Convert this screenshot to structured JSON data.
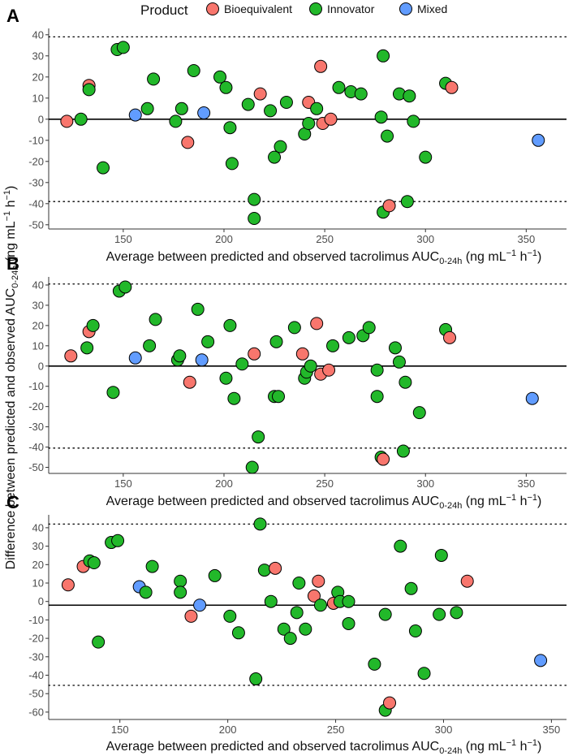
{
  "legend": {
    "title": "Product",
    "entries": [
      {
        "name": "Bioequivalent",
        "color": "#F8766D"
      },
      {
        "name": "Innovator",
        "color": "#22B82A"
      },
      {
        "name": "Mixed",
        "color": "#619CFF"
      }
    ]
  },
  "y_axis_title": {
    "main": "Difference between predicted and observed AUC",
    "sub": "0-24h",
    "unit_open": " (ng mL",
    "exp": "−1",
    "unit_mid": " h",
    "unit_close": ")"
  },
  "chart_data": [
    {
      "type": "scatter",
      "panel": "A",
      "xlabel": {
        "main": "Average between predicted and observed tacrolimus AUC",
        "sub": "0-24h",
        "unit_open": " (ng mL",
        "exp": "−1",
        "unit_mid": " h",
        "unit_close": ")"
      },
      "xlim": [
        113,
        370
      ],
      "ylim": [
        -52,
        43
      ],
      "xticks": [
        150,
        200,
        250,
        300,
        350
      ],
      "yticks": [
        -50,
        -40,
        -30,
        -20,
        -10,
        0,
        10,
        20,
        30,
        40
      ],
      "hlines": {
        "mean": 0,
        "upper": 39,
        "lower": -39
      },
      "points": [
        {
          "x": 122,
          "y": -1,
          "group": "Bioequivalent"
        },
        {
          "x": 129,
          "y": 0,
          "group": "Innovator"
        },
        {
          "x": 133,
          "y": 16,
          "group": "Bioequivalent"
        },
        {
          "x": 133,
          "y": 14,
          "group": "Innovator"
        },
        {
          "x": 140,
          "y": -23,
          "group": "Innovator"
        },
        {
          "x": 147,
          "y": 33,
          "group": "Innovator"
        },
        {
          "x": 150,
          "y": 34,
          "group": "Innovator"
        },
        {
          "x": 156,
          "y": 2,
          "group": "Mixed"
        },
        {
          "x": 162,
          "y": 5,
          "group": "Innovator"
        },
        {
          "x": 165,
          "y": 19,
          "group": "Innovator"
        },
        {
          "x": 176,
          "y": -1,
          "group": "Innovator"
        },
        {
          "x": 179,
          "y": 5,
          "group": "Innovator"
        },
        {
          "x": 182,
          "y": -11,
          "group": "Bioequivalent"
        },
        {
          "x": 185,
          "y": 23,
          "group": "Innovator"
        },
        {
          "x": 190,
          "y": 3,
          "group": "Mixed"
        },
        {
          "x": 198,
          "y": 20,
          "group": "Innovator"
        },
        {
          "x": 201,
          "y": 15,
          "group": "Innovator"
        },
        {
          "x": 203,
          "y": -4,
          "group": "Innovator"
        },
        {
          "x": 204,
          "y": -21,
          "group": "Innovator"
        },
        {
          "x": 212,
          "y": 7,
          "group": "Innovator"
        },
        {
          "x": 215,
          "y": -38,
          "group": "Innovator"
        },
        {
          "x": 215,
          "y": -47,
          "group": "Innovator"
        },
        {
          "x": 218,
          "y": 12,
          "group": "Bioequivalent"
        },
        {
          "x": 223,
          "y": 4,
          "group": "Innovator"
        },
        {
          "x": 225,
          "y": -18,
          "group": "Innovator"
        },
        {
          "x": 228,
          "y": -13,
          "group": "Innovator"
        },
        {
          "x": 231,
          "y": 8,
          "group": "Innovator"
        },
        {
          "x": 240,
          "y": -7,
          "group": "Innovator"
        },
        {
          "x": 242,
          "y": 8,
          "group": "Bioequivalent"
        },
        {
          "x": 242,
          "y": -2,
          "group": "Innovator"
        },
        {
          "x": 246,
          "y": 5,
          "group": "Innovator"
        },
        {
          "x": 248,
          "y": 25,
          "group": "Bioequivalent"
        },
        {
          "x": 249,
          "y": -2,
          "group": "Bioequivalent"
        },
        {
          "x": 253,
          "y": 0,
          "group": "Bioequivalent"
        },
        {
          "x": 257,
          "y": 15,
          "group": "Innovator"
        },
        {
          "x": 263,
          "y": 13,
          "group": "Innovator"
        },
        {
          "x": 268,
          "y": 12,
          "group": "Innovator"
        },
        {
          "x": 278,
          "y": 1,
          "group": "Innovator"
        },
        {
          "x": 279,
          "y": 30,
          "group": "Innovator"
        },
        {
          "x": 279,
          "y": -44,
          "group": "Innovator"
        },
        {
          "x": 281,
          "y": -8,
          "group": "Innovator"
        },
        {
          "x": 282,
          "y": -41,
          "group": "Bioequivalent"
        },
        {
          "x": 287,
          "y": 12,
          "group": "Innovator"
        },
        {
          "x": 291,
          "y": -39,
          "group": "Innovator"
        },
        {
          "x": 292,
          "y": 11,
          "group": "Innovator"
        },
        {
          "x": 294,
          "y": -1,
          "group": "Innovator"
        },
        {
          "x": 300,
          "y": -18,
          "group": "Innovator"
        },
        {
          "x": 310,
          "y": 17,
          "group": "Innovator"
        },
        {
          "x": 313,
          "y": 15,
          "group": "Bioequivalent"
        },
        {
          "x": 356,
          "y": -10,
          "group": "Mixed"
        }
      ]
    },
    {
      "type": "scatter",
      "panel": "B",
      "xlabel": {
        "main": "Average between predicted and observed tacrolimus AUC",
        "sub": "0-24h",
        "unit_open": " (ng mL",
        "exp": "−1",
        "unit_mid": " h",
        "unit_close": ")"
      },
      "xlim": [
        113,
        370
      ],
      "ylim": [
        -53,
        44
      ],
      "xticks": [
        150,
        200,
        250,
        300,
        350
      ],
      "yticks": [
        -50,
        -40,
        -30,
        -20,
        -10,
        0,
        10,
        20,
        30,
        40
      ],
      "hlines": {
        "mean": 0,
        "upper": 40.5,
        "lower": -40.5
      },
      "points": [
        {
          "x": 124,
          "y": 5,
          "group": "Bioequivalent"
        },
        {
          "x": 132,
          "y": 9,
          "group": "Innovator"
        },
        {
          "x": 133,
          "y": 17,
          "group": "Bioequivalent"
        },
        {
          "x": 135,
          "y": 20,
          "group": "Innovator"
        },
        {
          "x": 145,
          "y": -13,
          "group": "Innovator"
        },
        {
          "x": 148,
          "y": 37,
          "group": "Innovator"
        },
        {
          "x": 151,
          "y": 39,
          "group": "Innovator"
        },
        {
          "x": 156,
          "y": 4,
          "group": "Mixed"
        },
        {
          "x": 163,
          "y": 10,
          "group": "Innovator"
        },
        {
          "x": 166,
          "y": 23,
          "group": "Innovator"
        },
        {
          "x": 177,
          "y": 3,
          "group": "Innovator"
        },
        {
          "x": 178,
          "y": 5,
          "group": "Innovator"
        },
        {
          "x": 183,
          "y": -8,
          "group": "Bioequivalent"
        },
        {
          "x": 187,
          "y": 28,
          "group": "Innovator"
        },
        {
          "x": 189,
          "y": 3,
          "group": "Mixed"
        },
        {
          "x": 192,
          "y": 12,
          "group": "Innovator"
        },
        {
          "x": 201,
          "y": -6,
          "group": "Innovator"
        },
        {
          "x": 203,
          "y": 20,
          "group": "Innovator"
        },
        {
          "x": 205,
          "y": -16,
          "group": "Innovator"
        },
        {
          "x": 209,
          "y": 1,
          "group": "Innovator"
        },
        {
          "x": 214,
          "y": -50,
          "group": "Innovator"
        },
        {
          "x": 215,
          "y": 6,
          "group": "Bioequivalent"
        },
        {
          "x": 217,
          "y": -35,
          "group": "Innovator"
        },
        {
          "x": 225,
          "y": -15,
          "group": "Innovator"
        },
        {
          "x": 226,
          "y": 12,
          "group": "Innovator"
        },
        {
          "x": 227,
          "y": -15,
          "group": "Innovator"
        },
        {
          "x": 235,
          "y": 19,
          "group": "Innovator"
        },
        {
          "x": 239,
          "y": 6,
          "group": "Bioequivalent"
        },
        {
          "x": 240,
          "y": -6,
          "group": "Innovator"
        },
        {
          "x": 241,
          "y": -3,
          "group": "Innovator"
        },
        {
          "x": 243,
          "y": 0,
          "group": "Innovator"
        },
        {
          "x": 246,
          "y": 21,
          "group": "Bioequivalent"
        },
        {
          "x": 248,
          "y": -4,
          "group": "Bioequivalent"
        },
        {
          "x": 252,
          "y": -2,
          "group": "Bioequivalent"
        },
        {
          "x": 254,
          "y": 10,
          "group": "Innovator"
        },
        {
          "x": 262,
          "y": 14,
          "group": "Innovator"
        },
        {
          "x": 269,
          "y": 15,
          "group": "Innovator"
        },
        {
          "x": 272,
          "y": 19,
          "group": "Innovator"
        },
        {
          "x": 276,
          "y": -2,
          "group": "Innovator"
        },
        {
          "x": 276,
          "y": -15,
          "group": "Innovator"
        },
        {
          "x": 278,
          "y": -45,
          "group": "Innovator"
        },
        {
          "x": 279,
          "y": -46,
          "group": "Bioequivalent"
        },
        {
          "x": 285,
          "y": 9,
          "group": "Innovator"
        },
        {
          "x": 287,
          "y": 2,
          "group": "Innovator"
        },
        {
          "x": 289,
          "y": -42,
          "group": "Innovator"
        },
        {
          "x": 290,
          "y": -8,
          "group": "Innovator"
        },
        {
          "x": 297,
          "y": -23,
          "group": "Innovator"
        },
        {
          "x": 310,
          "y": 18,
          "group": "Innovator"
        },
        {
          "x": 312,
          "y": 14,
          "group": "Bioequivalent"
        },
        {
          "x": 353,
          "y": -16,
          "group": "Mixed"
        }
      ]
    },
    {
      "type": "scatter",
      "panel": "C",
      "xlabel": {
        "main": "Average between predicted and observed tacrolimus AUC",
        "sub": "0-24h",
        "unit_open": " (ng mL",
        "exp": "−1",
        "unit_mid": " h",
        "unit_close": ")"
      },
      "xlim": [
        117,
        357
      ],
      "ylim": [
        -64,
        47
      ],
      "xticks": [
        150,
        200,
        250,
        300,
        350
      ],
      "yticks": [
        -60,
        -50,
        -40,
        -30,
        -20,
        -10,
        0,
        10,
        20,
        30,
        40
      ],
      "hlines": {
        "mean": -2,
        "upper": 42,
        "lower": -45.5
      },
      "points": [
        {
          "x": 126,
          "y": 9,
          "group": "Bioequivalent"
        },
        {
          "x": 133,
          "y": 19,
          "group": "Bioequivalent"
        },
        {
          "x": 136,
          "y": 22,
          "group": "Innovator"
        },
        {
          "x": 138,
          "y": 21,
          "group": "Innovator"
        },
        {
          "x": 140,
          "y": -22,
          "group": "Innovator"
        },
        {
          "x": 146,
          "y": 32,
          "group": "Innovator"
        },
        {
          "x": 149,
          "y": 33,
          "group": "Innovator"
        },
        {
          "x": 159,
          "y": 8,
          "group": "Mixed"
        },
        {
          "x": 162,
          "y": 5,
          "group": "Innovator"
        },
        {
          "x": 165,
          "y": 19,
          "group": "Innovator"
        },
        {
          "x": 178,
          "y": 11,
          "group": "Innovator"
        },
        {
          "x": 178,
          "y": 5,
          "group": "Innovator"
        },
        {
          "x": 183,
          "y": -8,
          "group": "Bioequivalent"
        },
        {
          "x": 187,
          "y": -2,
          "group": "Mixed"
        },
        {
          "x": 194,
          "y": 14,
          "group": "Innovator"
        },
        {
          "x": 201,
          "y": -8,
          "group": "Innovator"
        },
        {
          "x": 205,
          "y": -17,
          "group": "Innovator"
        },
        {
          "x": 213,
          "y": -42,
          "group": "Innovator"
        },
        {
          "x": 215,
          "y": 42,
          "group": "Innovator"
        },
        {
          "x": 217,
          "y": 17,
          "group": "Innovator"
        },
        {
          "x": 220,
          "y": 0,
          "group": "Innovator"
        },
        {
          "x": 222,
          "y": 18,
          "group": "Bioequivalent"
        },
        {
          "x": 226,
          "y": -15,
          "group": "Innovator"
        },
        {
          "x": 229,
          "y": -20,
          "group": "Innovator"
        },
        {
          "x": 232,
          "y": -6,
          "group": "Innovator"
        },
        {
          "x": 233,
          "y": 10,
          "group": "Innovator"
        },
        {
          "x": 236,
          "y": -15,
          "group": "Innovator"
        },
        {
          "x": 240,
          "y": 3,
          "group": "Bioequivalent"
        },
        {
          "x": 242,
          "y": 11,
          "group": "Bioequivalent"
        },
        {
          "x": 243,
          "y": -2,
          "group": "Innovator"
        },
        {
          "x": 249,
          "y": -1,
          "group": "Bioequivalent"
        },
        {
          "x": 251,
          "y": 5,
          "group": "Innovator"
        },
        {
          "x": 252,
          "y": 0,
          "group": "Innovator"
        },
        {
          "x": 256,
          "y": -12,
          "group": "Innovator"
        },
        {
          "x": 256,
          "y": 0,
          "group": "Innovator"
        },
        {
          "x": 268,
          "y": -34,
          "group": "Innovator"
        },
        {
          "x": 273,
          "y": -7,
          "group": "Innovator"
        },
        {
          "x": 273,
          "y": -59,
          "group": "Innovator"
        },
        {
          "x": 275,
          "y": -55,
          "group": "Bioequivalent"
        },
        {
          "x": 280,
          "y": 30,
          "group": "Innovator"
        },
        {
          "x": 285,
          "y": 7,
          "group": "Innovator"
        },
        {
          "x": 287,
          "y": -16,
          "group": "Innovator"
        },
        {
          "x": 291,
          "y": -39,
          "group": "Innovator"
        },
        {
          "x": 298,
          "y": -7,
          "group": "Innovator"
        },
        {
          "x": 299,
          "y": 25,
          "group": "Innovator"
        },
        {
          "x": 306,
          "y": -6,
          "group": "Innovator"
        },
        {
          "x": 311,
          "y": 11,
          "group": "Bioequivalent"
        },
        {
          "x": 345,
          "y": -32,
          "group": "Mixed"
        }
      ]
    }
  ]
}
